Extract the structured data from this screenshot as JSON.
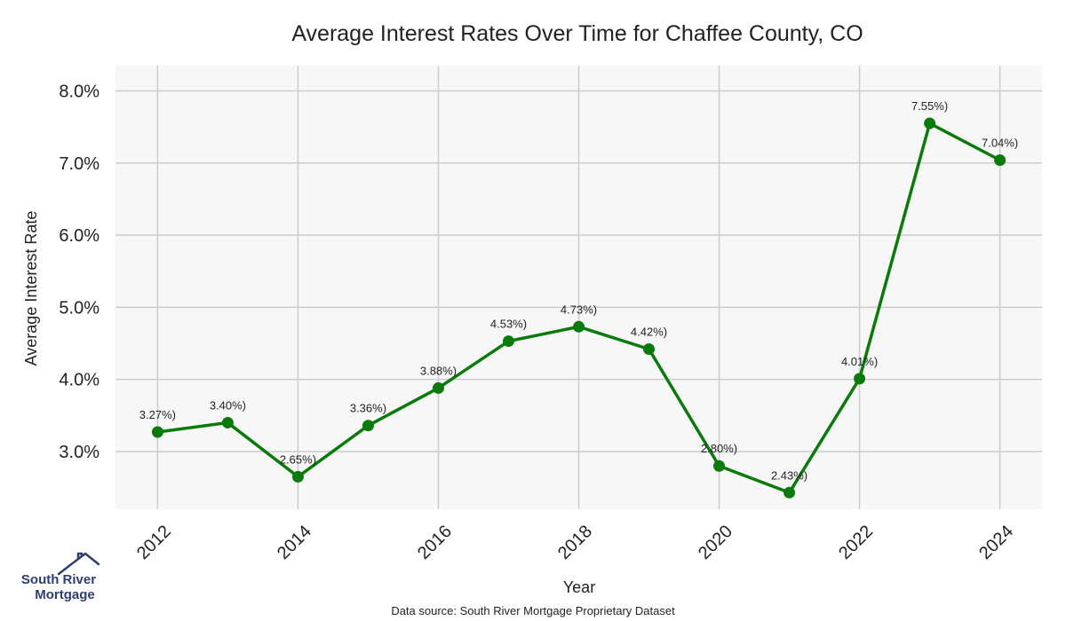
{
  "chart_data": {
    "type": "line",
    "title": "Average Interest Rates Over Time for Chaffee County, CO",
    "xlabel": "Year",
    "ylabel": "Average Interest Rate",
    "xlim": [
      2011.4,
      2024.6
    ],
    "ylim": [
      2.2,
      8.35
    ],
    "xticks": [
      2012,
      2014,
      2016,
      2018,
      2020,
      2022,
      2024
    ],
    "xtick_labels": [
      "2012",
      "2014",
      "2016",
      "2018",
      "2020",
      "2022",
      "2024"
    ],
    "yticks": [
      3.0,
      4.0,
      5.0,
      6.0,
      7.0,
      8.0
    ],
    "ytick_labels": [
      "3.0%",
      "4.0%",
      "5.0%",
      "6.0%",
      "7.0%",
      "8.0%"
    ],
    "grid": true,
    "series": [
      {
        "x": [
          2012,
          2013,
          2014,
          2015,
          2016,
          2017,
          2018,
          2019,
          2020,
          2021,
          2022,
          2023,
          2024
        ],
        "values": [
          3.27,
          3.4,
          2.65,
          3.36,
          3.88,
          4.53,
          4.73,
          4.42,
          2.8,
          2.43,
          4.01,
          7.55,
          7.04
        ],
        "labels": [
          "3.27%)",
          "3.40%)",
          "2.65%)",
          "3.36%)",
          "3.88%)",
          "4.53%)",
          "4.73%)",
          "4.42%)",
          "2.80%)",
          "2.43%)",
          "4.01%)",
          "7.55%)",
          "7.04%)"
        ],
        "color": "#0a7a0a"
      }
    ],
    "source_note": "Data source: South River Mortgage Proprietary Dataset",
    "colors": {
      "plot_bg": "#f7f7f7",
      "grid": "#cccccc",
      "line": "#0a7a0a"
    }
  },
  "logo": {
    "line1": "South River",
    "line2": "Mortgage",
    "color": "#2e3e73"
  }
}
